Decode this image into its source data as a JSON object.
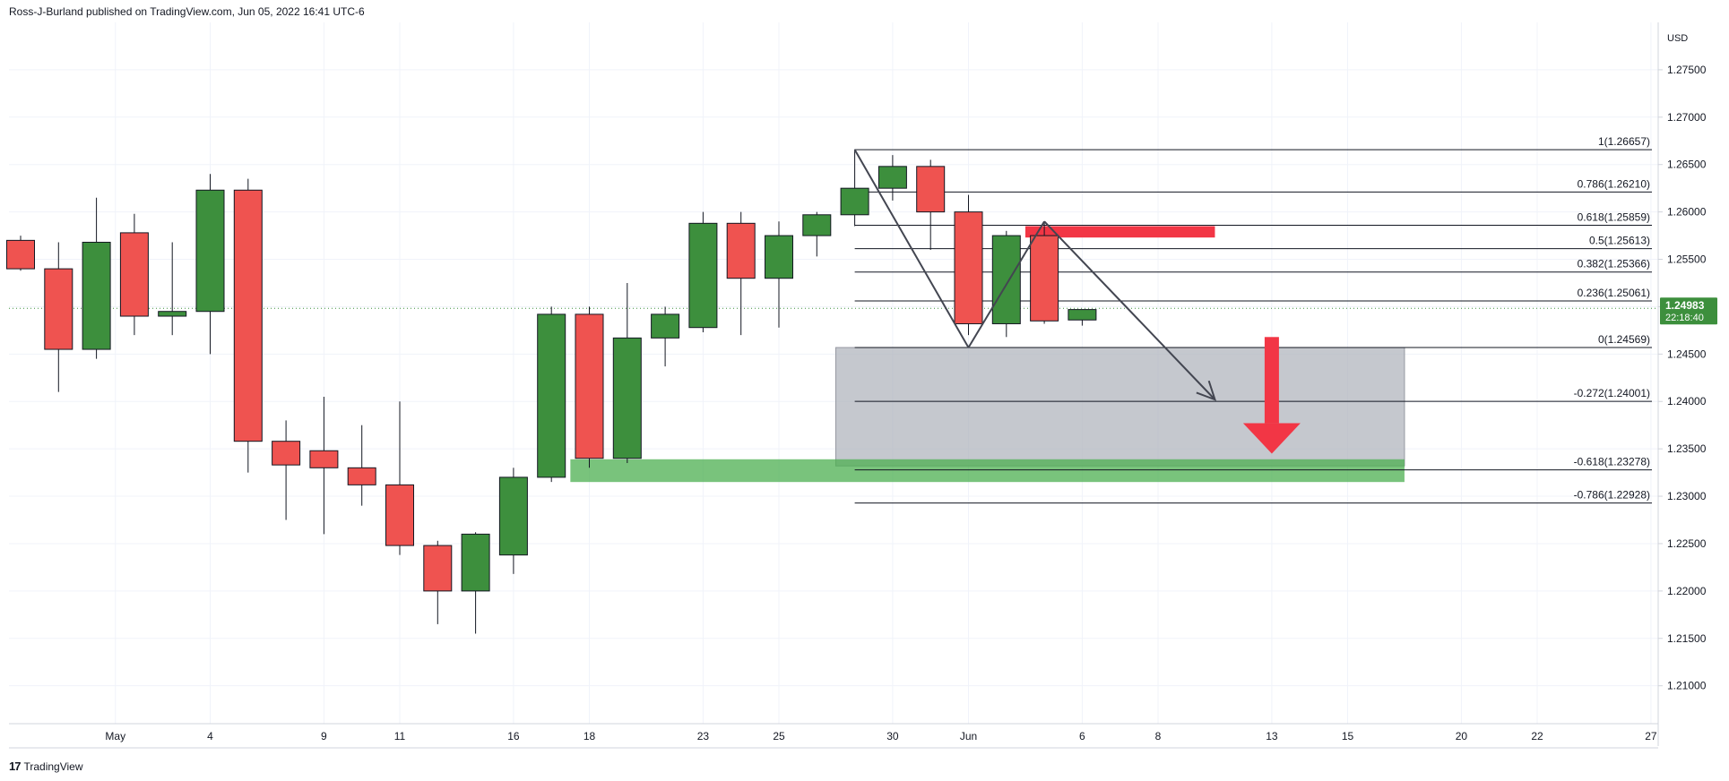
{
  "header": {
    "publisher": "Ross-J-Burland published on TradingView.com, Jun 05, 2022 16:41 UTC-6"
  },
  "footer": {
    "brand": "TradingView"
  },
  "colors": {
    "up": "#3d8f3d",
    "down": "#ef5350",
    "arrow": "#f23645",
    "grid": "#f0f3fa",
    "axis": "#d1d4dc",
    "text": "#131722"
  },
  "chart_data": {
    "type": "candlestick",
    "currency": "USD",
    "ylim": [
      1.206,
      1.28
    ],
    "yticks": [
      {
        "value": 1.275,
        "label": "1.27500"
      },
      {
        "value": 1.27,
        "label": "1.27000"
      },
      {
        "value": 1.265,
        "label": "1.26500"
      },
      {
        "value": 1.26,
        "label": "1.26000"
      },
      {
        "value": 1.255,
        "label": "1.25500"
      },
      {
        "value": 1.25,
        "label": "1.25000"
      },
      {
        "value": 1.245,
        "label": "1.24500"
      },
      {
        "value": 1.24,
        "label": "1.24000"
      },
      {
        "value": 1.235,
        "label": "1.23500"
      },
      {
        "value": 1.23,
        "label": "1.23000"
      },
      {
        "value": 1.225,
        "label": "1.22500"
      },
      {
        "value": 1.22,
        "label": "1.22000"
      },
      {
        "value": 1.215,
        "label": "1.21500"
      },
      {
        "value": 1.21,
        "label": "1.21000"
      }
    ],
    "xticks": [
      {
        "i": 2.5,
        "label": "May"
      },
      {
        "i": 5,
        "label": "4"
      },
      {
        "i": 8,
        "label": "9"
      },
      {
        "i": 10,
        "label": "11"
      },
      {
        "i": 13,
        "label": "16"
      },
      {
        "i": 15,
        "label": "18"
      },
      {
        "i": 18,
        "label": "23"
      },
      {
        "i": 20,
        "label": "25"
      },
      {
        "i": 23,
        "label": "30"
      },
      {
        "i": 25,
        "label": "Jun"
      },
      {
        "i": 28,
        "label": "6"
      },
      {
        "i": 30,
        "label": "8"
      },
      {
        "i": 33,
        "label": "13"
      },
      {
        "i": 35,
        "label": "15"
      },
      {
        "i": 38,
        "label": "20"
      },
      {
        "i": 40,
        "label": "22"
      },
      {
        "i": 43,
        "label": "27"
      }
    ],
    "candles": [
      {
        "i": 0,
        "o": 1.257,
        "h": 1.2575,
        "l": 1.2538,
        "c": 1.254
      },
      {
        "i": 1,
        "o": 1.254,
        "h": 1.2568,
        "l": 1.241,
        "c": 1.2455
      },
      {
        "i": 2,
        "o": 1.2455,
        "h": 1.2615,
        "l": 1.2445,
        "c": 1.2568
      },
      {
        "i": 3,
        "o": 1.2578,
        "h": 1.2598,
        "l": 1.247,
        "c": 1.249
      },
      {
        "i": 4,
        "o": 1.249,
        "h": 1.2568,
        "l": 1.247,
        "c": 1.2495
      },
      {
        "i": 5,
        "o": 1.2495,
        "h": 1.264,
        "l": 1.245,
        "c": 1.2623
      },
      {
        "i": 6,
        "o": 1.2623,
        "h": 1.2635,
        "l": 1.2325,
        "c": 1.2358
      },
      {
        "i": 7,
        "o": 1.2358,
        "h": 1.238,
        "l": 1.2275,
        "c": 1.2333
      },
      {
        "i": 8,
        "o": 1.2348,
        "h": 1.2405,
        "l": 1.226,
        "c": 1.233
      },
      {
        "i": 9,
        "o": 1.233,
        "h": 1.2375,
        "l": 1.229,
        "c": 1.2312
      },
      {
        "i": 10,
        "o": 1.2312,
        "h": 1.24,
        "l": 1.2238,
        "c": 1.2248
      },
      {
        "i": 11,
        "o": 1.2248,
        "h": 1.2253,
        "l": 1.2165,
        "c": 1.22
      },
      {
        "i": 12,
        "o": 1.22,
        "h": 1.2262,
        "l": 1.2155,
        "c": 1.226
      },
      {
        "i": 13,
        "o": 1.2238,
        "h": 1.233,
        "l": 1.2218,
        "c": 1.232
      },
      {
        "i": 14,
        "o": 1.232,
        "h": 1.25,
        "l": 1.2315,
        "c": 1.2492
      },
      {
        "i": 15,
        "o": 1.2492,
        "h": 1.25,
        "l": 1.233,
        "c": 1.234
      },
      {
        "i": 16,
        "o": 1.234,
        "h": 1.2525,
        "l": 1.2335,
        "c": 1.2467
      },
      {
        "i": 17,
        "o": 1.2467,
        "h": 1.25,
        "l": 1.2437,
        "c": 1.2492
      },
      {
        "i": 18,
        "o": 1.2478,
        "h": 1.26,
        "l": 1.2473,
        "c": 1.2588
      },
      {
        "i": 19,
        "o": 1.2588,
        "h": 1.26,
        "l": 1.247,
        "c": 1.253
      },
      {
        "i": 20,
        "o": 1.253,
        "h": 1.259,
        "l": 1.2478,
        "c": 1.2575
      },
      {
        "i": 21,
        "o": 1.2575,
        "h": 1.26,
        "l": 1.2553,
        "c": 1.2597
      },
      {
        "i": 22,
        "o": 1.2597,
        "h": 1.2666,
        "l": 1.2585,
        "c": 1.2625
      },
      {
        "i": 23,
        "o": 1.2625,
        "h": 1.266,
        "l": 1.2612,
        "c": 1.2648
      },
      {
        "i": 24,
        "o": 1.2648,
        "h": 1.2655,
        "l": 1.256,
        "c": 1.26
      },
      {
        "i": 25,
        "o": 1.26,
        "h": 1.2618,
        "l": 1.247,
        "c": 1.2482
      },
      {
        "i": 26,
        "o": 1.2482,
        "h": 1.258,
        "l": 1.2468,
        "c": 1.2575
      },
      {
        "i": 27,
        "o": 1.2575,
        "h": 1.259,
        "l": 1.2482,
        "c": 1.2485
      },
      {
        "i": 28,
        "o": 1.2486,
        "h": 1.2497,
        "l": 1.248,
        "c": 1.2497
      }
    ],
    "current_price": {
      "value": 1.24983,
      "label": "1.24983",
      "countdown": "22:18:40"
    },
    "fib_levels": [
      {
        "value": 1.26657,
        "label": "1(1.26657)"
      },
      {
        "value": 1.2621,
        "label": "0.786(1.26210)"
      },
      {
        "value": 1.25859,
        "label": "0.618(1.25859)"
      },
      {
        "value": 1.25613,
        "label": "0.5(1.25613)"
      },
      {
        "value": 1.25366,
        "label": "0.382(1.25366)"
      },
      {
        "value": 1.25061,
        "label": "0.236(1.25061)"
      },
      {
        "value": 1.24569,
        "label": "0(1.24569)"
      },
      {
        "value": 1.24001,
        "label": "-0.272(1.24001)"
      },
      {
        "value": 1.23278,
        "label": "-0.618(1.23278)"
      },
      {
        "value": 1.22928,
        "label": "-0.786(1.22928)"
      }
    ],
    "fib_start_i": 22,
    "zones": [
      {
        "name": "gray-zone",
        "x1": 21.5,
        "x2": 36.5,
        "y1": 1.24569,
        "y2": 1.2332,
        "color": "#b2b5be"
      },
      {
        "name": "green-zone",
        "x1": 14.5,
        "x2": 36.5,
        "y1": 1.2339,
        "y2": 1.2315,
        "color": "#4caf50"
      },
      {
        "name": "red-resistance",
        "x1": 26.5,
        "x2": 31.5,
        "y1": 1.2585,
        "y2": 1.2573,
        "color": "#f23645"
      }
    ],
    "pattern_lines": [
      {
        "from": [
          22,
          1.26657
        ],
        "to": [
          25,
          1.24569
        ]
      },
      {
        "from": [
          25,
          1.24569
        ],
        "to": [
          27,
          1.259
        ]
      },
      {
        "from": [
          27,
          1.259
        ],
        "to": [
          31.5,
          1.2402
        ]
      }
    ],
    "down_arrow": {
      "i": 33,
      "from": 1.2468,
      "to": 1.2345
    }
  }
}
